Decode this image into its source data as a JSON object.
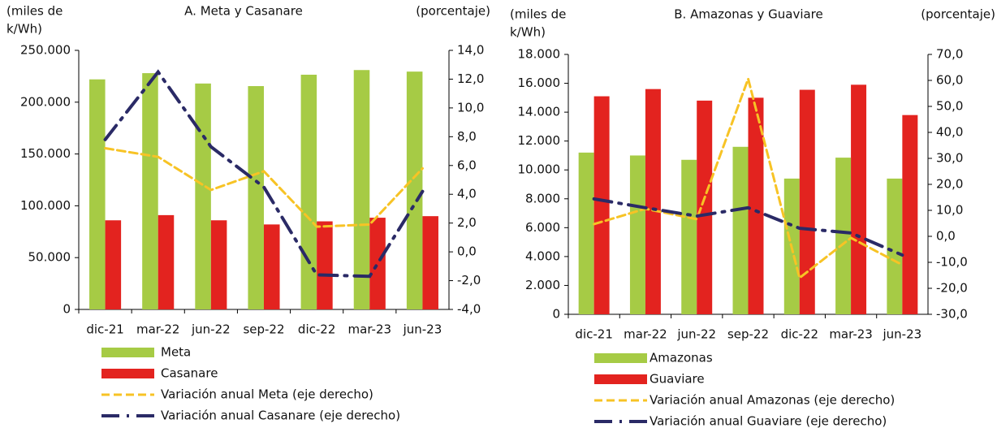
{
  "chart_data": [
    {
      "type": "bar",
      "title": "A. Meta y Casanare",
      "ylabel": [
        "(miles de",
        "k/Wh)"
      ],
      "y2label": "(porcentaje)",
      "categories": [
        "dic-21",
        "mar-22",
        "jun-22",
        "sep-22",
        "dic-22",
        "mar-23",
        "jun-23"
      ],
      "ylim": [
        0,
        250000
      ],
      "yticks": [
        0,
        {
          "value": 50000,
          "label": "50.000"
        },
        {
          "value": 100000,
          "label": "100.000"
        },
        {
          "value": 150000,
          "label": "150.000"
        },
        {
          "value": 200000,
          "label": "200.000"
        },
        {
          "value": 250000,
          "label": "250.000"
        }
      ],
      "y2lim": [
        -4,
        14
      ],
      "y2ticks": [
        {
          "value": -4,
          "label": "-4,0"
        },
        {
          "value": -2,
          "label": "-2,0"
        },
        {
          "value": 0,
          "label": "0,0"
        },
        {
          "value": 2,
          "label": "2,0"
        },
        {
          "value": 4,
          "label": "4,0"
        },
        {
          "value": 6,
          "label": "6,0"
        },
        {
          "value": 8,
          "label": "8,0"
        },
        {
          "value": 10,
          "label": "10,0"
        },
        {
          "value": 12,
          "label": "12,0"
        },
        {
          "value": 14,
          "label": "14,0"
        }
      ],
      "series": [
        {
          "name": "Meta",
          "color": "#a6cb45",
          "values": [
            222000,
            228000,
            218000,
            215500,
            226500,
            231000,
            229500
          ]
        },
        {
          "name": "Casanare",
          "color": "#e3231f",
          "values": [
            86000,
            91000,
            86000,
            82000,
            85000,
            88500,
            90000
          ]
        },
        {
          "name": "Variación anual Meta (eje derecho)",
          "color": "#f7c325",
          "axis": "y2",
          "style": "dashed",
          "values": [
            7.2,
            6.6,
            4.3,
            5.6,
            1.75,
            1.9,
            5.8
          ]
        },
        {
          "name": "Variación anual Casanare (eje derecho)",
          "color": "#2a2a66",
          "axis": "y2",
          "style": "dashdot",
          "values": [
            7.8,
            12.5,
            7.3,
            4.5,
            -1.6,
            -1.7,
            4.2
          ]
        }
      ]
    },
    {
      "type": "bar",
      "title": "B. Amazonas y Guaviare",
      "ylabel": [
        "(miles de",
        "k/Wh)"
      ],
      "y2label": "(porcentaje)",
      "categories": [
        "dic-21",
        "mar-22",
        "jun-22",
        "sep-22",
        "dic-22",
        "mar-23",
        "jun-23"
      ],
      "ylim": [
        0,
        18000
      ],
      "yticks": [
        0,
        {
          "value": 2000,
          "label": "2.000"
        },
        {
          "value": 4000,
          "label": "4.000"
        },
        {
          "value": 6000,
          "label": "6.000"
        },
        {
          "value": 8000,
          "label": "8.000"
        },
        {
          "value": 10000,
          "label": "10.000"
        },
        {
          "value": 12000,
          "label": "12.000"
        },
        {
          "value": 14000,
          "label": "14.000"
        },
        {
          "value": 16000,
          "label": "16.000"
        },
        {
          "value": 18000,
          "label": "18.000"
        }
      ],
      "y2lim": [
        -30,
        70
      ],
      "y2ticks": [
        {
          "value": -30,
          "label": "-30,0"
        },
        {
          "value": -20,
          "label": "-20,0"
        },
        {
          "value": -10,
          "label": "-10,0"
        },
        {
          "value": 0,
          "label": "0,0"
        },
        {
          "value": 10,
          "label": "10,0"
        },
        {
          "value": 20,
          "label": "20,0"
        },
        {
          "value": 30,
          "label": "30,0"
        },
        {
          "value": 40,
          "label": "40,0"
        },
        {
          "value": 50,
          "label": "50,0"
        },
        {
          "value": 60,
          "label": "60,0"
        },
        {
          "value": 70,
          "label": "70,0"
        }
      ],
      "series": [
        {
          "name": "Amazonas",
          "color": "#a6cb45",
          "values": [
            11200,
            11000,
            10700,
            11600,
            9400,
            10850,
            9400
          ]
        },
        {
          "name": "Guaviare",
          "color": "#e3231f",
          "values": [
            15100,
            15600,
            14800,
            15000,
            15550,
            15900,
            13800
          ]
        },
        {
          "name": "Variación anual Amazonas (eje derecho)",
          "color": "#f7c325",
          "axis": "y2",
          "style": "dashed",
          "values": [
            4.7,
            10.6,
            6.6,
            60.6,
            -16,
            -0.6,
            -11
          ]
        },
        {
          "name": "Variación anual Guaviare (eje derecho)",
          "color": "#2a2a66",
          "axis": "y2",
          "style": "dashdot",
          "values": [
            14.4,
            11,
            7.8,
            11,
            3.1,
            1.3,
            -7.2
          ]
        }
      ]
    }
  ]
}
